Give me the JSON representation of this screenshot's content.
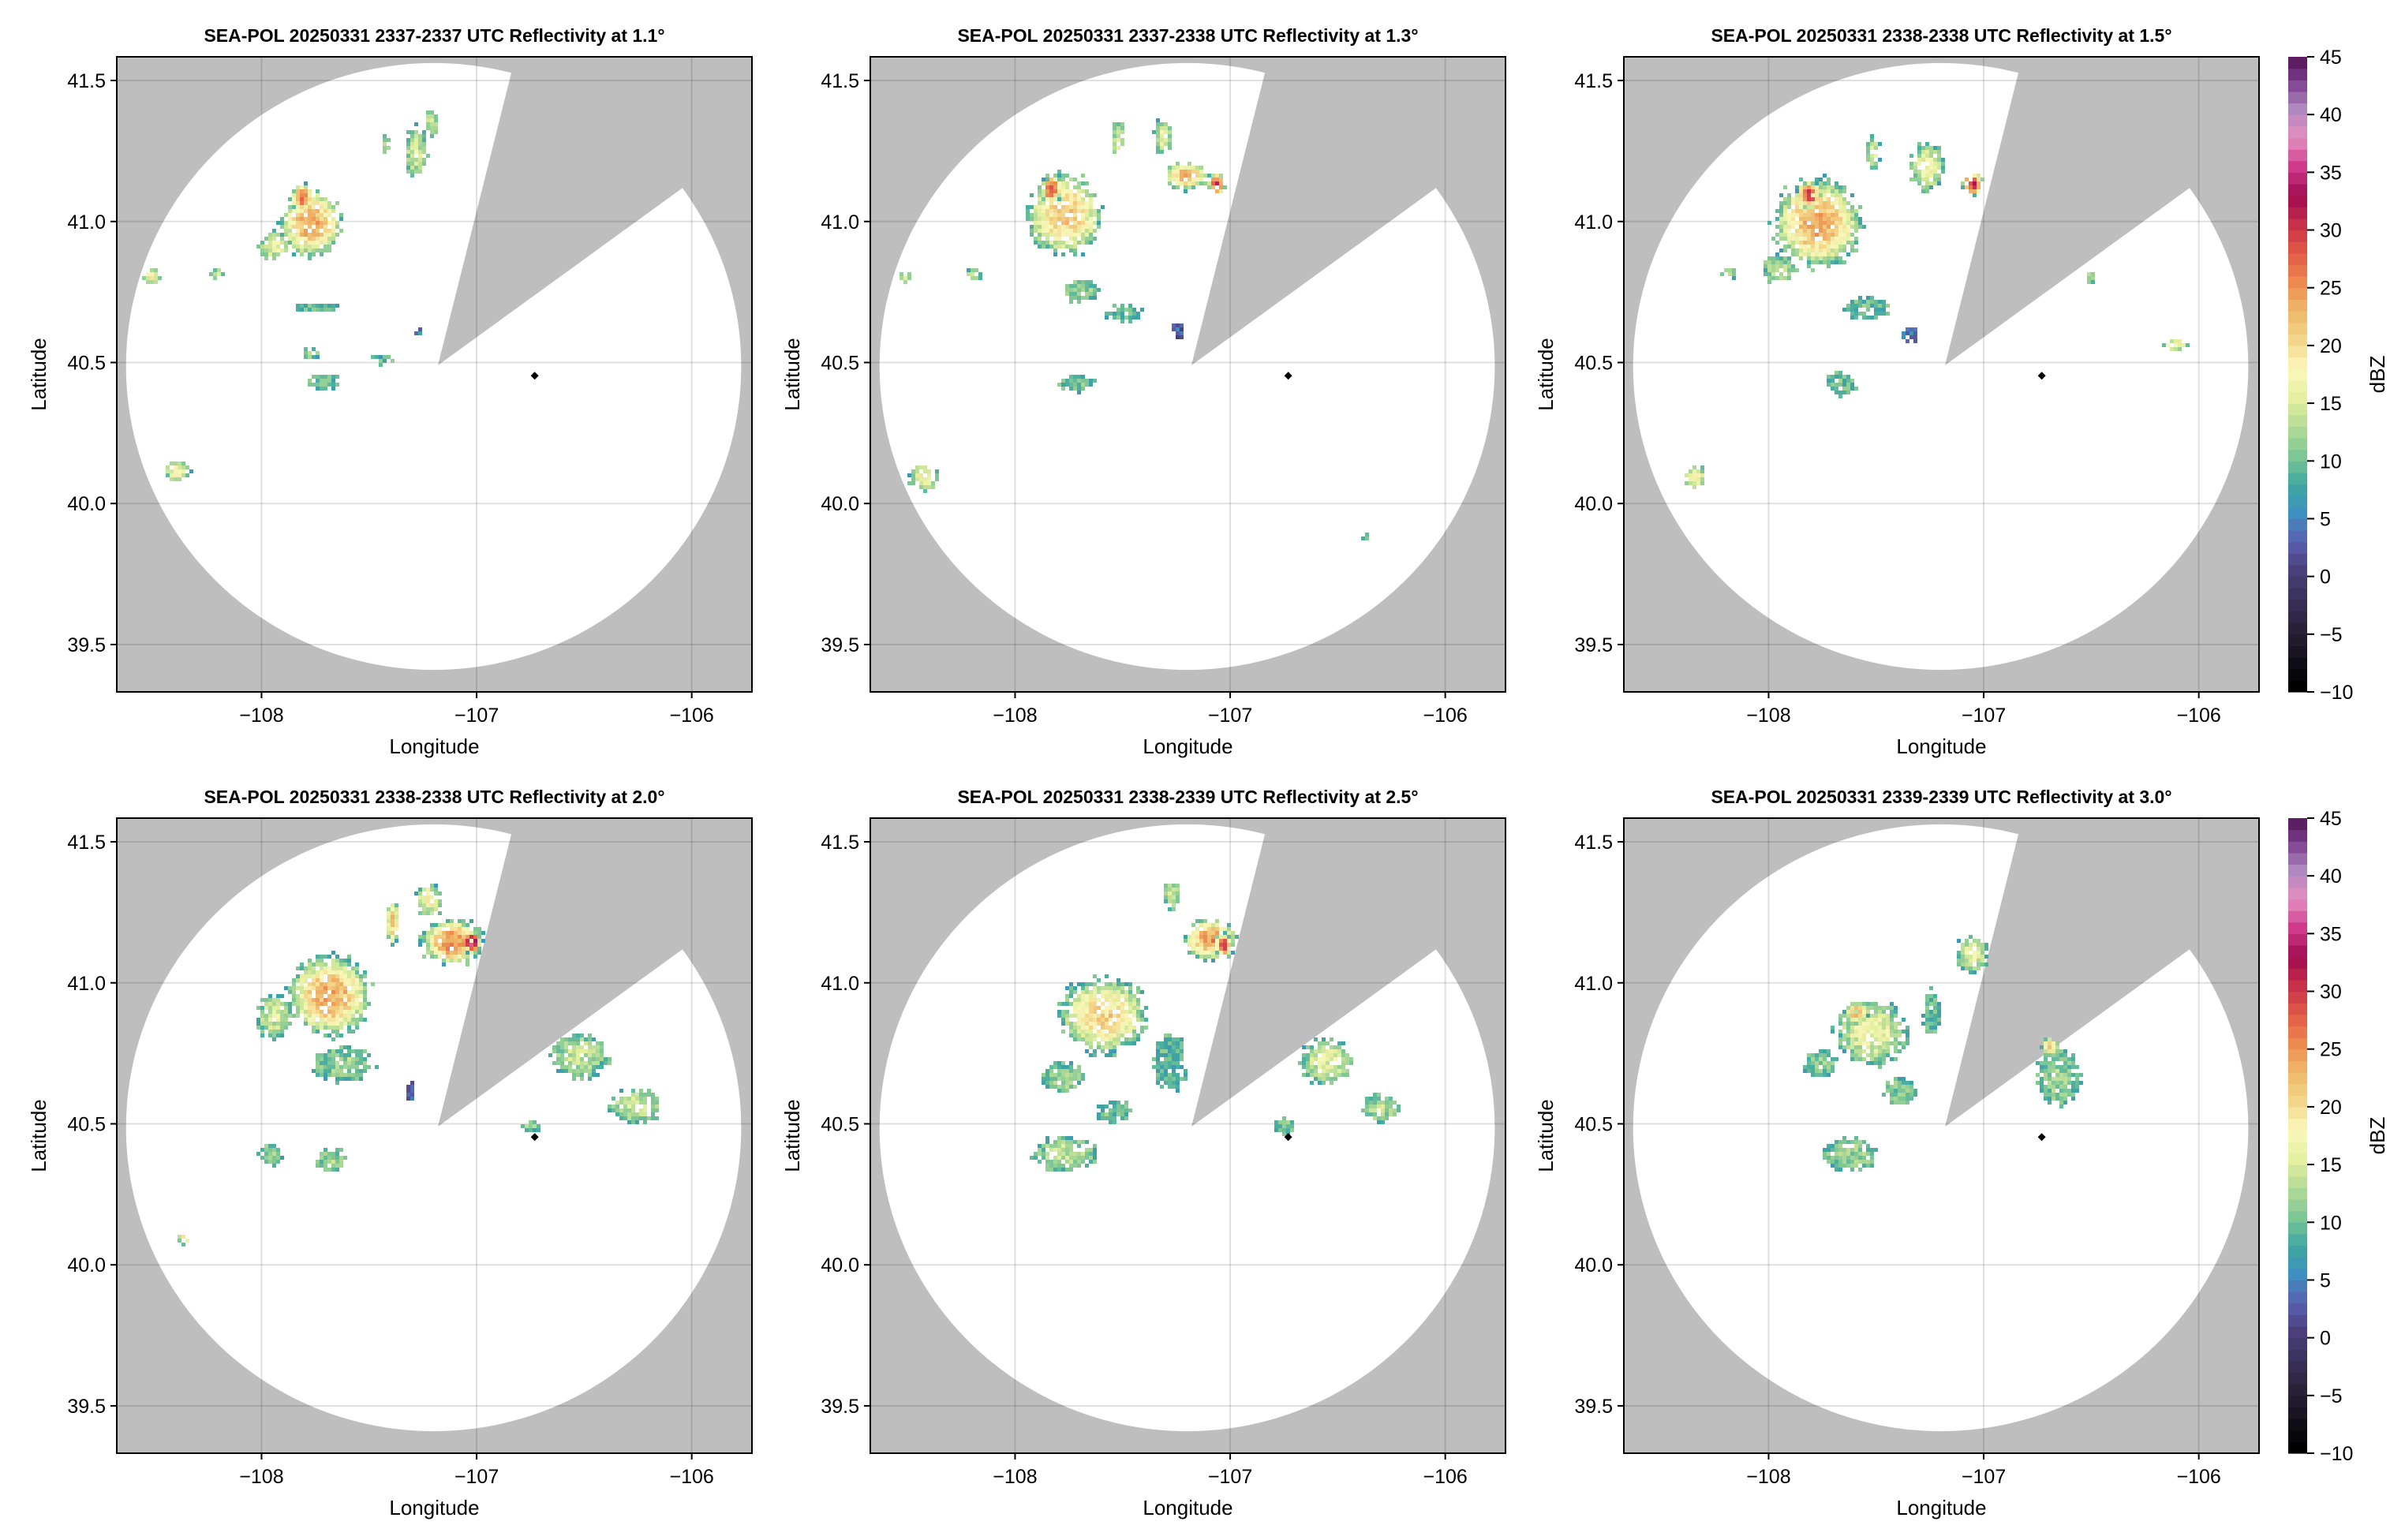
{
  "chart_data": [
    {
      "type": "heatmap",
      "subtype": "radar-ppi-grid",
      "xlabel": "Longitude",
      "ylabel": "Latitude",
      "xlim": [
        -108.673,
        -105.72
      ],
      "ylim": [
        39.332,
        41.584
      ],
      "xticks": [
        -108,
        -107,
        -106
      ],
      "xtick_labels": [
        "−108",
        "−107",
        "−106"
      ],
      "yticks": [
        39.5,
        40.0,
        40.5,
        41.0,
        41.5
      ],
      "ytick_labels": [
        "39.5",
        "40.0",
        "40.5",
        "41.0",
        "41.5"
      ],
      "grid": true,
      "background_color": "#bebebe",
      "coverage": {
        "center": [
          -107.2,
          40.486
        ],
        "radius_lon": 1.43,
        "radius_lat": 1.076,
        "blocked_sector": {
          "apex": [
            -107.18,
            40.49
          ],
          "edge1": [
            -106.84,
            41.523
          ],
          "edge2": [
            -106.05,
            41.115
          ]
        }
      },
      "radar_marker": [
        -106.73,
        40.453
      ],
      "colorbar": {
        "label": "dBZ",
        "range": [
          -10,
          45
        ],
        "ticks": [
          -10,
          -5,
          0,
          5,
          10,
          15,
          20,
          25,
          30,
          35,
          40,
          45
        ],
        "tick_labels": [
          "−10",
          "−5",
          "0",
          "5",
          "10",
          "15",
          "20",
          "25",
          "30",
          "35",
          "40",
          "45"
        ],
        "stops": [
          [
            -10,
            "#000000"
          ],
          [
            -5,
            "#2a2038"
          ],
          [
            0,
            "#4a3f7a"
          ],
          [
            2.5,
            "#5a5fae"
          ],
          [
            5,
            "#3f8fc0"
          ],
          [
            7.5,
            "#3fa8a0"
          ],
          [
            10,
            "#7ec795"
          ],
          [
            12.5,
            "#b4db95"
          ],
          [
            15,
            "#e4f0a0"
          ],
          [
            17.5,
            "#fbf8bc"
          ],
          [
            20,
            "#f3d68a"
          ],
          [
            22.5,
            "#efb86a"
          ],
          [
            25,
            "#ed8a50"
          ],
          [
            27.5,
            "#e25a45"
          ],
          [
            30,
            "#c63048"
          ],
          [
            32.5,
            "#a00a50"
          ],
          [
            35,
            "#d03a8c"
          ],
          [
            37.5,
            "#e490c0"
          ],
          [
            40,
            "#b088c0"
          ],
          [
            42.5,
            "#7a3c8c"
          ],
          [
            45,
            "#4a0a4a"
          ]
        ]
      },
      "echo_format": [
        "lon",
        "lat",
        "radius_lon",
        "radius_lat",
        "peak_dBZ"
      ],
      "panels": [
        {
          "title": "SEA-POL 20250331 2337-2337 UTC Reflectivity at 1.1°",
          "elevation_deg": 1.1,
          "echoes": [
            [
              -107.78,
              41.0,
              0.14,
              0.12,
              24
            ],
            [
              -107.82,
              41.09,
              0.05,
              0.05,
              28
            ],
            [
              -107.95,
              40.92,
              0.07,
              0.05,
              17
            ],
            [
              -107.29,
              41.25,
              0.05,
              0.09,
              15
            ],
            [
              -107.22,
              41.36,
              0.03,
              0.05,
              14
            ],
            [
              -107.43,
              41.28,
              0.02,
              0.04,
              14
            ],
            [
              -108.52,
              40.81,
              0.04,
              0.03,
              18
            ],
            [
              -108.4,
              40.12,
              0.06,
              0.04,
              18
            ],
            [
              -107.72,
              40.44,
              0.07,
              0.03,
              10
            ],
            [
              -107.78,
              40.54,
              0.04,
              0.02,
              12
            ],
            [
              -108.22,
              40.82,
              0.04,
              0.02,
              14
            ],
            [
              -107.75,
              40.7,
              0.1,
              0.02,
              10
            ],
            [
              -107.45,
              40.52,
              0.05,
              0.02,
              9
            ],
            [
              -107.28,
              40.62,
              0.02,
              0.02,
              5
            ]
          ]
        },
        {
          "title": "SEA-POL 20250331 2337-2338 UTC Reflectivity at 1.3°",
          "elevation_deg": 1.3,
          "echoes": [
            [
              -107.78,
              41.03,
              0.17,
              0.14,
              22
            ],
            [
              -107.84,
              41.12,
              0.05,
              0.05,
              30
            ],
            [
              -107.21,
              41.17,
              0.1,
              0.05,
              23
            ],
            [
              -107.07,
              41.14,
              0.04,
              0.04,
              30
            ],
            [
              -107.32,
              41.31,
              0.04,
              0.06,
              16
            ],
            [
              -107.71,
              40.76,
              0.08,
              0.04,
              12
            ],
            [
              -108.43,
              40.1,
              0.07,
              0.05,
              18
            ],
            [
              -107.72,
              40.43,
              0.08,
              0.03,
              10
            ],
            [
              -106.38,
              39.89,
              0.02,
              0.01,
              16
            ],
            [
              -108.52,
              40.81,
              0.03,
              0.02,
              18
            ],
            [
              -108.2,
              40.82,
              0.04,
              0.02,
              14
            ],
            [
              -107.5,
              40.68,
              0.08,
              0.03,
              10
            ],
            [
              -107.25,
              40.62,
              0.03,
              0.03,
              3
            ],
            [
              -107.53,
              41.3,
              0.03,
              0.06,
              15
            ]
          ]
        },
        {
          "title": "SEA-POL 20250331 2338-2338 UTC Reflectivity at 1.5°",
          "elevation_deg": 1.5,
          "echoes": [
            [
              -107.78,
              41.0,
              0.2,
              0.15,
              24
            ],
            [
              -107.82,
              41.1,
              0.06,
              0.05,
              30
            ],
            [
              -107.27,
              41.2,
              0.08,
              0.08,
              17
            ],
            [
              -107.06,
              41.14,
              0.05,
              0.04,
              32
            ],
            [
              -107.52,
              41.25,
              0.03,
              0.06,
              15
            ],
            [
              -107.96,
              40.84,
              0.08,
              0.05,
              13
            ],
            [
              -107.67,
              40.43,
              0.07,
              0.04,
              10
            ],
            [
              -106.12,
              40.57,
              0.06,
              0.02,
              18
            ],
            [
              -106.52,
              40.81,
              0.03,
              0.02,
              12
            ],
            [
              -108.35,
              40.1,
              0.05,
              0.04,
              18
            ],
            [
              -107.55,
              40.7,
              0.1,
              0.04,
              10
            ],
            [
              -107.35,
              40.6,
              0.04,
              0.03,
              4
            ],
            [
              -108.2,
              40.82,
              0.04,
              0.02,
              15
            ]
          ]
        },
        {
          "title": "SEA-POL 20250331 2338-2338 UTC Reflectivity at 2.0°",
          "elevation_deg": 2.0,
          "echoes": [
            [
              -107.69,
              40.96,
              0.19,
              0.14,
              24
            ],
            [
              -107.12,
              41.15,
              0.14,
              0.08,
              26
            ],
            [
              -107.03,
              41.15,
              0.04,
              0.04,
              38
            ],
            [
              -107.23,
              41.3,
              0.06,
              0.06,
              18
            ],
            [
              -107.4,
              41.22,
              0.03,
              0.08,
              22
            ],
            [
              -107.95,
              40.89,
              0.08,
              0.08,
              15
            ],
            [
              -107.63,
              40.72,
              0.14,
              0.06,
              12
            ],
            [
              -106.53,
              40.75,
              0.13,
              0.08,
              14
            ],
            [
              -106.27,
              40.57,
              0.12,
              0.06,
              15
            ],
            [
              -107.69,
              40.38,
              0.07,
              0.04,
              12
            ],
            [
              -107.97,
              40.4,
              0.06,
              0.04,
              11
            ],
            [
              -108.37,
              40.1,
              0.03,
              0.02,
              18
            ],
            [
              -107.32,
              40.62,
              0.02,
              0.04,
              2
            ],
            [
              -106.75,
              40.5,
              0.04,
              0.02,
              12
            ]
          ]
        },
        {
          "title": "SEA-POL 20250331 2338-2339 UTC Reflectivity at 2.5°",
          "elevation_deg": 2.5,
          "echoes": [
            [
              -107.6,
              40.89,
              0.2,
              0.13,
              21
            ],
            [
              -107.1,
              41.16,
              0.12,
              0.07,
              25
            ],
            [
              -107.04,
              41.14,
              0.04,
              0.04,
              32
            ],
            [
              -106.56,
              40.73,
              0.12,
              0.08,
              16
            ],
            [
              -106.31,
              40.56,
              0.08,
              0.05,
              13
            ],
            [
              -107.78,
              40.4,
              0.14,
              0.06,
              14
            ],
            [
              -107.29,
              40.72,
              0.08,
              0.1,
              9
            ],
            [
              -107.78,
              40.67,
              0.1,
              0.05,
              12
            ],
            [
              -107.55,
              40.55,
              0.08,
              0.04,
              10
            ],
            [
              -107.28,
              41.32,
              0.04,
              0.05,
              15
            ],
            [
              -106.75,
              40.5,
              0.05,
              0.03,
              11
            ]
          ]
        },
        {
          "title": "SEA-POL 20250331 2339-2339 UTC Reflectivity at 3.0°",
          "elevation_deg": 3.0,
          "echoes": [
            [
              -107.53,
              40.83,
              0.16,
              0.11,
              17
            ],
            [
              -107.6,
              40.9,
              0.05,
              0.04,
              24
            ],
            [
              -107.06,
              41.11,
              0.07,
              0.07,
              16
            ],
            [
              -106.66,
              40.67,
              0.1,
              0.1,
              12
            ],
            [
              -106.7,
              40.78,
              0.04,
              0.03,
              22
            ],
            [
              -107.63,
              40.4,
              0.12,
              0.06,
              12
            ],
            [
              -107.77,
              40.72,
              0.08,
              0.05,
              11
            ],
            [
              -107.4,
              40.62,
              0.08,
              0.05,
              11
            ],
            [
              -107.25,
              40.9,
              0.04,
              0.08,
              10
            ]
          ]
        }
      ]
    }
  ]
}
